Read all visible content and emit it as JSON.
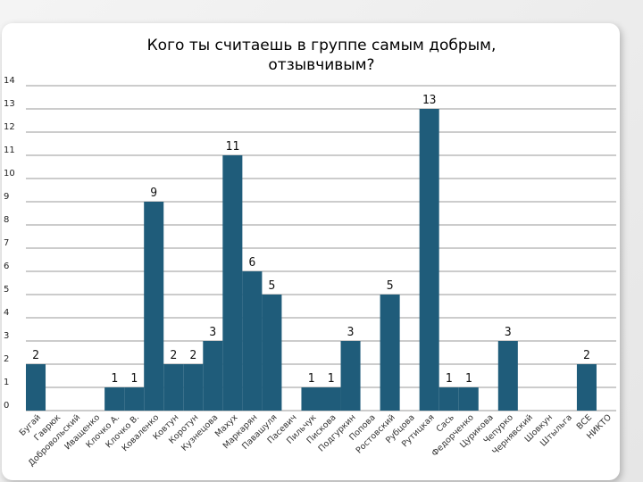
{
  "chart_data": {
    "type": "bar",
    "title_lines": [
      "Кого ты считаешь в группе самым добрым,",
      "отзывчивым?"
    ],
    "categories": [
      "Бугай",
      "Гаврюк",
      "Добровольский",
      "Иващенко",
      "Клочко А.",
      "Клочко В.",
      "Коваленко",
      "Ковтун",
      "Коротун",
      "Кузнецова",
      "Махух",
      "Маркарян",
      "Павашуля",
      "Пасевич",
      "Пильчук",
      "Пискова",
      "Подгуркин",
      "Попова",
      "Ростовский",
      "Рубцова",
      "Рутицкая",
      "Сась",
      "Федорченко",
      "Цурикова",
      "Чепурко",
      "Чернявский",
      "Шовкун",
      "Штыльга",
      "ВСЕ",
      "НИКТО"
    ],
    "values": [
      2,
      0,
      0,
      0,
      1,
      1,
      9,
      2,
      2,
      3,
      11,
      6,
      5,
      0,
      1,
      1,
      3,
      0,
      5,
      0,
      13,
      1,
      1,
      0,
      3,
      0,
      0,
      0,
      2,
      0
    ],
    "ylim": [
      0,
      14
    ],
    "yticks": [
      0,
      1,
      2,
      3,
      4,
      5,
      6,
      7,
      8,
      9,
      10,
      11,
      12,
      13,
      14
    ],
    "grid": true,
    "bar_color": "#1f5c7a"
  }
}
